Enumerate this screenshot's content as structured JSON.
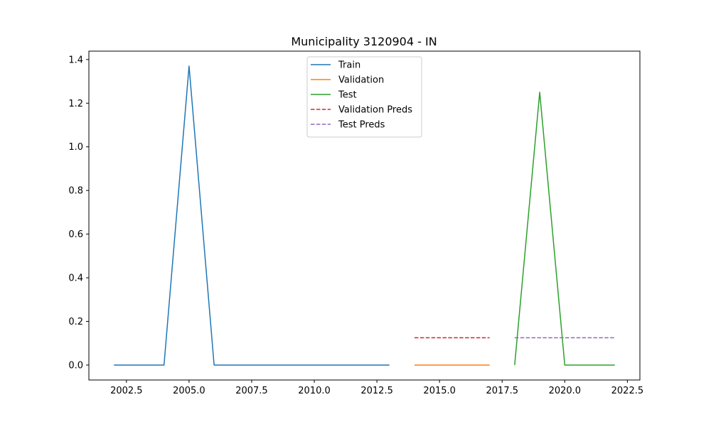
{
  "chart_data": {
    "type": "line",
    "title": "Municipality 3120904 - IN",
    "xlabel": "",
    "ylabel": "",
    "xlim": [
      2001.0,
      2023.0
    ],
    "ylim": [
      -0.0685,
      1.4385
    ],
    "x_ticks": [
      2002.5,
      2005.0,
      2007.5,
      2010.0,
      2012.5,
      2015.0,
      2017.5,
      2020.0,
      2022.5
    ],
    "x_tick_labels": [
      "2002.5",
      "2005.0",
      "2007.5",
      "2010.0",
      "2012.5",
      "2015.0",
      "2017.5",
      "2020.0",
      "2022.5"
    ],
    "y_ticks": [
      0.0,
      0.2,
      0.4,
      0.6,
      0.8,
      1.0,
      1.2,
      1.4
    ],
    "y_tick_labels": [
      "0.0",
      "0.2",
      "0.4",
      "0.6",
      "0.8",
      "1.0",
      "1.2",
      "1.4"
    ],
    "grid": false,
    "legend_position": "top-center",
    "series": [
      {
        "name": "Train",
        "color": "#1f77b4",
        "dash": "solid",
        "x": [
          2002,
          2003,
          2004,
          2005,
          2006,
          2007,
          2008,
          2009,
          2010,
          2011,
          2012,
          2013
        ],
        "y": [
          0,
          0,
          0,
          1.37,
          0,
          0,
          0,
          0,
          0,
          0,
          0,
          0
        ]
      },
      {
        "name": "Validation",
        "color": "#ff7f0e",
        "dash": "solid",
        "x": [
          2014,
          2015,
          2016,
          2017
        ],
        "y": [
          0,
          0,
          0,
          0
        ]
      },
      {
        "name": "Test",
        "color": "#2ca02c",
        "dash": "solid",
        "x": [
          2018,
          2019,
          2020,
          2021,
          2022
        ],
        "y": [
          0,
          1.25,
          0,
          0,
          0
        ]
      },
      {
        "name": "Validation Preds",
        "color": "#d62728",
        "dash": "dashed",
        "x": [
          2014,
          2015,
          2016,
          2017
        ],
        "y": [
          0.125,
          0.125,
          0.125,
          0.125
        ]
      },
      {
        "name": "Test Preds",
        "color": "#9467bd",
        "dash": "dashed",
        "x": [
          2018,
          2019,
          2020,
          2021,
          2022
        ],
        "y": [
          0.125,
          0.125,
          0.125,
          0.125,
          0.125
        ]
      }
    ]
  }
}
